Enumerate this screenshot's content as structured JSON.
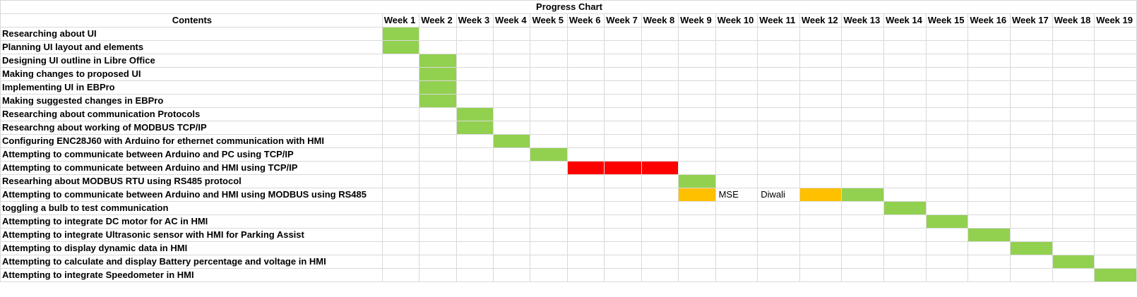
{
  "sheet": {
    "title": "Progress Chart",
    "contents_header": "Contents",
    "weeks": [
      "Week 1",
      "Week 2",
      "Week 3",
      "Week 4",
      "Week 5",
      "Week 6",
      "Week 7",
      "Week 8",
      "Week 9",
      "Week 10",
      "Week 11",
      "Week 12",
      "Week 13",
      "Week 14",
      "Week 15",
      "Week 16",
      "Week 17",
      "Week 18",
      "Week 19"
    ],
    "colors": {
      "completed": "#92d050",
      "delayed": "#ff0000",
      "partial": "#ffc000"
    },
    "tasks": [
      {
        "label": "Researching about UI",
        "cells": {
          "1": "completed"
        }
      },
      {
        "label": "Planning UI layout and elements",
        "cells": {
          "1": "completed"
        }
      },
      {
        "label": "Designing UI outline in Libre Office",
        "cells": {
          "2": "completed"
        }
      },
      {
        "label": "Making changes to proposed UI",
        "cells": {
          "2": "completed"
        }
      },
      {
        "label": "Implementing UI in EBPro",
        "cells": {
          "2": "completed"
        }
      },
      {
        "label": "Making suggested changes in EBPro",
        "cells": {
          "2": "completed"
        }
      },
      {
        "label": "Researching about communication Protocols",
        "cells": {
          "3": "completed"
        }
      },
      {
        "label": "Researchng about working of MODBUS TCP/IP",
        "cells": {
          "3": "completed"
        }
      },
      {
        "label": "Configuring ENC28J60 with Arduino for ethernet communication with HMI",
        "cells": {
          "4": "completed"
        }
      },
      {
        "label": "Attempting to communicate between Arduino and PC using TCP/IP",
        "cells": {
          "5": "completed"
        }
      },
      {
        "label": "Attempting to communicate between Arduino and HMI using TCP/IP",
        "cells": {
          "6": "delayed",
          "7": "delayed",
          "8": "delayed"
        }
      },
      {
        "label": "Researhing about MODBUS RTU using RS485 protocol",
        "cells": {
          "9": "completed"
        }
      },
      {
        "label": "Attempting to communicate between Arduino and HMI using MODBUS using RS485",
        "cells": {
          "9": "partial",
          "12": "partial",
          "13": "completed"
        },
        "notes": {
          "10": "MSE",
          "11": "Diwali"
        }
      },
      {
        "label": "toggling a bulb to test communication",
        "cells": {
          "14": "completed"
        }
      },
      {
        "label": "Attempting to integrate DC motor for AC in HMI",
        "cells": {
          "15": "completed"
        }
      },
      {
        "label": "Attempting to integrate Ultrasonic sensor with HMI for Parking Assist",
        "cells": {
          "16": "completed"
        }
      },
      {
        "label": "Attempting to display dynamic data in HMI",
        "cells": {
          "17": "completed"
        }
      },
      {
        "label": "Attempting to calculate and display Battery percentage and voltage in HMI",
        "cells": {
          "18": "completed"
        }
      },
      {
        "label": "Attempting to integrate Speedometer in HMI",
        "cells": {
          "19": "completed"
        }
      }
    ]
  }
}
